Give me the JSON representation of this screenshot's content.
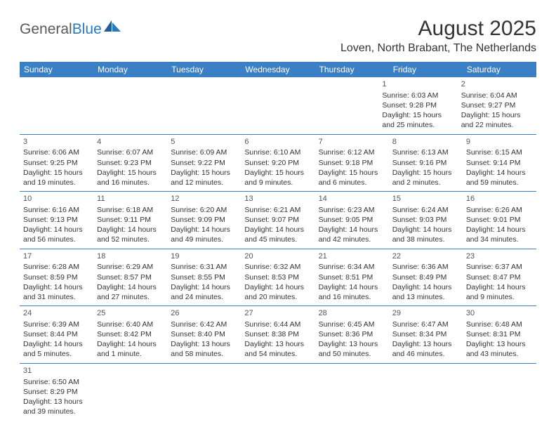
{
  "logo": {
    "part1": "General",
    "part2": "Blue"
  },
  "title": "August 2025",
  "location": "Loven, North Brabant, The Netherlands",
  "header_bg": "#3b7fc4",
  "border_color": "#3b7fc4",
  "text_color": "#333333",
  "day_names": [
    "Sunday",
    "Monday",
    "Tuesday",
    "Wednesday",
    "Thursday",
    "Friday",
    "Saturday"
  ],
  "weeks": [
    [
      null,
      null,
      null,
      null,
      null,
      {
        "n": "1",
        "sr": "Sunrise: 6:03 AM",
        "ss": "Sunset: 9:28 PM",
        "d1": "Daylight: 15 hours",
        "d2": "and 25 minutes."
      },
      {
        "n": "2",
        "sr": "Sunrise: 6:04 AM",
        "ss": "Sunset: 9:27 PM",
        "d1": "Daylight: 15 hours",
        "d2": "and 22 minutes."
      }
    ],
    [
      {
        "n": "3",
        "sr": "Sunrise: 6:06 AM",
        "ss": "Sunset: 9:25 PM",
        "d1": "Daylight: 15 hours",
        "d2": "and 19 minutes."
      },
      {
        "n": "4",
        "sr": "Sunrise: 6:07 AM",
        "ss": "Sunset: 9:23 PM",
        "d1": "Daylight: 15 hours",
        "d2": "and 16 minutes."
      },
      {
        "n": "5",
        "sr": "Sunrise: 6:09 AM",
        "ss": "Sunset: 9:22 PM",
        "d1": "Daylight: 15 hours",
        "d2": "and 12 minutes."
      },
      {
        "n": "6",
        "sr": "Sunrise: 6:10 AM",
        "ss": "Sunset: 9:20 PM",
        "d1": "Daylight: 15 hours",
        "d2": "and 9 minutes."
      },
      {
        "n": "7",
        "sr": "Sunrise: 6:12 AM",
        "ss": "Sunset: 9:18 PM",
        "d1": "Daylight: 15 hours",
        "d2": "and 6 minutes."
      },
      {
        "n": "8",
        "sr": "Sunrise: 6:13 AM",
        "ss": "Sunset: 9:16 PM",
        "d1": "Daylight: 15 hours",
        "d2": "and 2 minutes."
      },
      {
        "n": "9",
        "sr": "Sunrise: 6:15 AM",
        "ss": "Sunset: 9:14 PM",
        "d1": "Daylight: 14 hours",
        "d2": "and 59 minutes."
      }
    ],
    [
      {
        "n": "10",
        "sr": "Sunrise: 6:16 AM",
        "ss": "Sunset: 9:13 PM",
        "d1": "Daylight: 14 hours",
        "d2": "and 56 minutes."
      },
      {
        "n": "11",
        "sr": "Sunrise: 6:18 AM",
        "ss": "Sunset: 9:11 PM",
        "d1": "Daylight: 14 hours",
        "d2": "and 52 minutes."
      },
      {
        "n": "12",
        "sr": "Sunrise: 6:20 AM",
        "ss": "Sunset: 9:09 PM",
        "d1": "Daylight: 14 hours",
        "d2": "and 49 minutes."
      },
      {
        "n": "13",
        "sr": "Sunrise: 6:21 AM",
        "ss": "Sunset: 9:07 PM",
        "d1": "Daylight: 14 hours",
        "d2": "and 45 minutes."
      },
      {
        "n": "14",
        "sr": "Sunrise: 6:23 AM",
        "ss": "Sunset: 9:05 PM",
        "d1": "Daylight: 14 hours",
        "d2": "and 42 minutes."
      },
      {
        "n": "15",
        "sr": "Sunrise: 6:24 AM",
        "ss": "Sunset: 9:03 PM",
        "d1": "Daylight: 14 hours",
        "d2": "and 38 minutes."
      },
      {
        "n": "16",
        "sr": "Sunrise: 6:26 AM",
        "ss": "Sunset: 9:01 PM",
        "d1": "Daylight: 14 hours",
        "d2": "and 34 minutes."
      }
    ],
    [
      {
        "n": "17",
        "sr": "Sunrise: 6:28 AM",
        "ss": "Sunset: 8:59 PM",
        "d1": "Daylight: 14 hours",
        "d2": "and 31 minutes."
      },
      {
        "n": "18",
        "sr": "Sunrise: 6:29 AM",
        "ss": "Sunset: 8:57 PM",
        "d1": "Daylight: 14 hours",
        "d2": "and 27 minutes."
      },
      {
        "n": "19",
        "sr": "Sunrise: 6:31 AM",
        "ss": "Sunset: 8:55 PM",
        "d1": "Daylight: 14 hours",
        "d2": "and 24 minutes."
      },
      {
        "n": "20",
        "sr": "Sunrise: 6:32 AM",
        "ss": "Sunset: 8:53 PM",
        "d1": "Daylight: 14 hours",
        "d2": "and 20 minutes."
      },
      {
        "n": "21",
        "sr": "Sunrise: 6:34 AM",
        "ss": "Sunset: 8:51 PM",
        "d1": "Daylight: 14 hours",
        "d2": "and 16 minutes."
      },
      {
        "n": "22",
        "sr": "Sunrise: 6:36 AM",
        "ss": "Sunset: 8:49 PM",
        "d1": "Daylight: 14 hours",
        "d2": "and 13 minutes."
      },
      {
        "n": "23",
        "sr": "Sunrise: 6:37 AM",
        "ss": "Sunset: 8:47 PM",
        "d1": "Daylight: 14 hours",
        "d2": "and 9 minutes."
      }
    ],
    [
      {
        "n": "24",
        "sr": "Sunrise: 6:39 AM",
        "ss": "Sunset: 8:44 PM",
        "d1": "Daylight: 14 hours",
        "d2": "and 5 minutes."
      },
      {
        "n": "25",
        "sr": "Sunrise: 6:40 AM",
        "ss": "Sunset: 8:42 PM",
        "d1": "Daylight: 14 hours",
        "d2": "and 1 minute."
      },
      {
        "n": "26",
        "sr": "Sunrise: 6:42 AM",
        "ss": "Sunset: 8:40 PM",
        "d1": "Daylight: 13 hours",
        "d2": "and 58 minutes."
      },
      {
        "n": "27",
        "sr": "Sunrise: 6:44 AM",
        "ss": "Sunset: 8:38 PM",
        "d1": "Daylight: 13 hours",
        "d2": "and 54 minutes."
      },
      {
        "n": "28",
        "sr": "Sunrise: 6:45 AM",
        "ss": "Sunset: 8:36 PM",
        "d1": "Daylight: 13 hours",
        "d2": "and 50 minutes."
      },
      {
        "n": "29",
        "sr": "Sunrise: 6:47 AM",
        "ss": "Sunset: 8:34 PM",
        "d1": "Daylight: 13 hours",
        "d2": "and 46 minutes."
      },
      {
        "n": "30",
        "sr": "Sunrise: 6:48 AM",
        "ss": "Sunset: 8:31 PM",
        "d1": "Daylight: 13 hours",
        "d2": "and 43 minutes."
      }
    ],
    [
      {
        "n": "31",
        "sr": "Sunrise: 6:50 AM",
        "ss": "Sunset: 8:29 PM",
        "d1": "Daylight: 13 hours",
        "d2": "and 39 minutes."
      },
      null,
      null,
      null,
      null,
      null,
      null
    ]
  ]
}
